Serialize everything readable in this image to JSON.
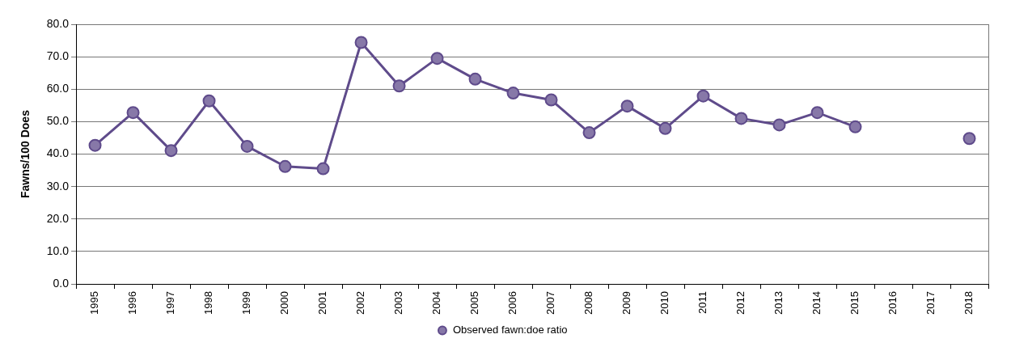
{
  "chart_data": {
    "type": "line",
    "ylabel": "Fawns/100 Does",
    "categories": [
      "1995",
      "1996",
      "1997",
      "1998",
      "1999",
      "2000",
      "2001",
      "2002",
      "2003",
      "2004",
      "2005",
      "2006",
      "2007",
      "2008",
      "2009",
      "2010",
      "2011",
      "2012",
      "2013",
      "2014",
      "2015",
      "2016",
      "2017",
      "2018"
    ],
    "series": [
      {
        "name": "Observed fawn:doe ratio",
        "color": "#5f4b8b",
        "values": [
          42.7,
          52.8,
          41.1,
          56.4,
          42.4,
          36.2,
          35.5,
          74.4,
          61.0,
          69.5,
          63.1,
          58.8,
          56.7,
          46.6,
          54.8,
          47.9,
          57.9,
          51.0,
          49.0,
          52.8,
          48.4,
          null,
          null,
          44.8
        ]
      }
    ],
    "ylim": [
      0,
      80
    ],
    "yticks": [
      {
        "value": 0,
        "label": "0.0"
      },
      {
        "value": 10,
        "label": "10.0"
      },
      {
        "value": 20,
        "label": "20.0"
      },
      {
        "value": 30,
        "label": "30.0"
      },
      {
        "value": 40,
        "label": "40.0"
      },
      {
        "value": 50,
        "label": "50.0"
      },
      {
        "value": 60,
        "label": "60.0"
      },
      {
        "value": 70,
        "label": "70.0"
      },
      {
        "value": 80,
        "label": "80.0"
      }
    ],
    "grid": "y",
    "legend": "bottom",
    "marker": "circle",
    "line_style": "solid"
  }
}
